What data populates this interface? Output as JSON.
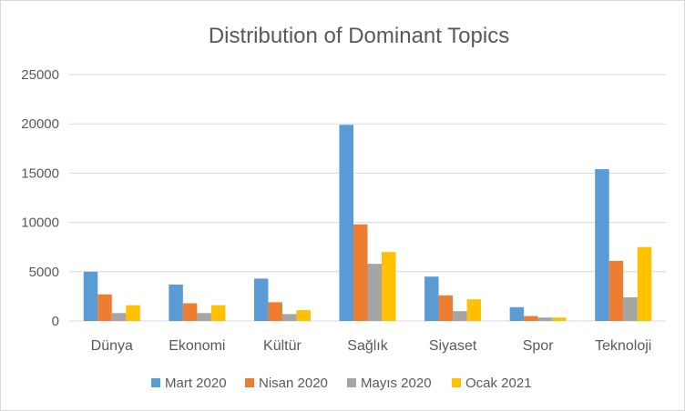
{
  "chart_data": {
    "type": "bar",
    "title": "Distribution of Dominant Topics",
    "xlabel": "",
    "ylabel": "",
    "ylim": [
      0,
      25000
    ],
    "yticks": [
      0,
      5000,
      10000,
      15000,
      20000,
      25000
    ],
    "grid": true,
    "legend": "bottom",
    "categories": [
      "Dünya",
      "Ekonomi",
      "Kültür",
      "Sağlık",
      "Siyaset",
      "Spor",
      "Teknoloji"
    ],
    "series": [
      {
        "name": "Mart 2020",
        "color": "#5B9BD5",
        "values": [
          5000,
          3700,
          4300,
          19900,
          4500,
          1400,
          15400
        ]
      },
      {
        "name": "Nisan 2020",
        "color": "#ED7D31",
        "values": [
          2700,
          1800,
          1900,
          9800,
          2600,
          500,
          6100
        ]
      },
      {
        "name": "Mayıs 2020",
        "color": "#A5A5A5",
        "values": [
          800,
          800,
          700,
          5800,
          1000,
          350,
          2400
        ]
      },
      {
        "name": "Ocak 2021",
        "color": "#FFC000",
        "values": [
          1600,
          1600,
          1100,
          7000,
          2200,
          350,
          7500
        ]
      }
    ]
  }
}
